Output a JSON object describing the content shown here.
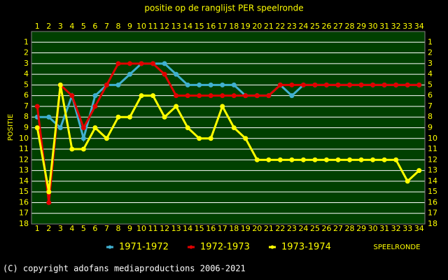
{
  "chart_data": {
    "type": "line",
    "title": "positie op de ranglijst PER speelronde",
    "x_label": "SPEELRONDE",
    "y_label": "POSITIE",
    "footer": "(C) copyright adofans mediaproductions 2006-2021",
    "x": [
      1,
      2,
      3,
      4,
      5,
      6,
      7,
      8,
      9,
      10,
      11,
      12,
      13,
      14,
      15,
      16,
      17,
      18,
      19,
      20,
      21,
      22,
      23,
      24,
      25,
      26,
      27,
      28,
      29,
      30,
      31,
      32,
      33,
      34
    ],
    "xlim": [
      0.5,
      34.5
    ],
    "xticks": [
      1,
      2,
      3,
      4,
      5,
      6,
      7,
      8,
      9,
      10,
      11,
      12,
      13,
      14,
      15,
      16,
      17,
      18,
      19,
      20,
      21,
      22,
      23,
      24,
      25,
      26,
      27,
      28,
      29,
      30,
      31,
      32,
      33,
      34
    ],
    "ylim": [
      0,
      18
    ],
    "yticks": [
      1,
      2,
      3,
      4,
      5,
      6,
      7,
      8,
      9,
      10,
      11,
      12,
      13,
      14,
      15,
      16,
      17,
      18
    ],
    "y_inverted": true,
    "grid": true,
    "series": [
      {
        "name": "1971-1972",
        "color": "#40b0d0",
        "values": [
          8,
          8,
          9,
          6,
          10,
          6,
          5,
          5,
          4,
          3,
          3,
          3,
          4,
          5,
          5,
          5,
          5,
          5,
          6,
          6,
          6,
          5,
          6,
          5,
          5,
          5,
          5,
          5,
          5,
          5,
          5,
          5,
          5,
          5
        ]
      },
      {
        "name": "1972-1973",
        "color": "#e00000",
        "values": [
          7,
          16,
          5,
          6,
          9,
          7,
          5,
          3,
          3,
          3,
          3,
          4,
          6,
          6,
          6,
          6,
          6,
          6,
          6,
          6,
          6,
          5,
          5,
          5,
          5,
          5,
          5,
          5,
          5,
          5,
          5,
          5,
          5,
          5
        ]
      },
      {
        "name": "1973-1974",
        "color": "#ffff00",
        "values": [
          9,
          15,
          5,
          11,
          11,
          9,
          10,
          8,
          8,
          6,
          6,
          8,
          7,
          9,
          10,
          10,
          7,
          9,
          10,
          12,
          12,
          12,
          12,
          12,
          12,
          12,
          12,
          12,
          12,
          12,
          12,
          12,
          14,
          13
        ]
      }
    ]
  }
}
